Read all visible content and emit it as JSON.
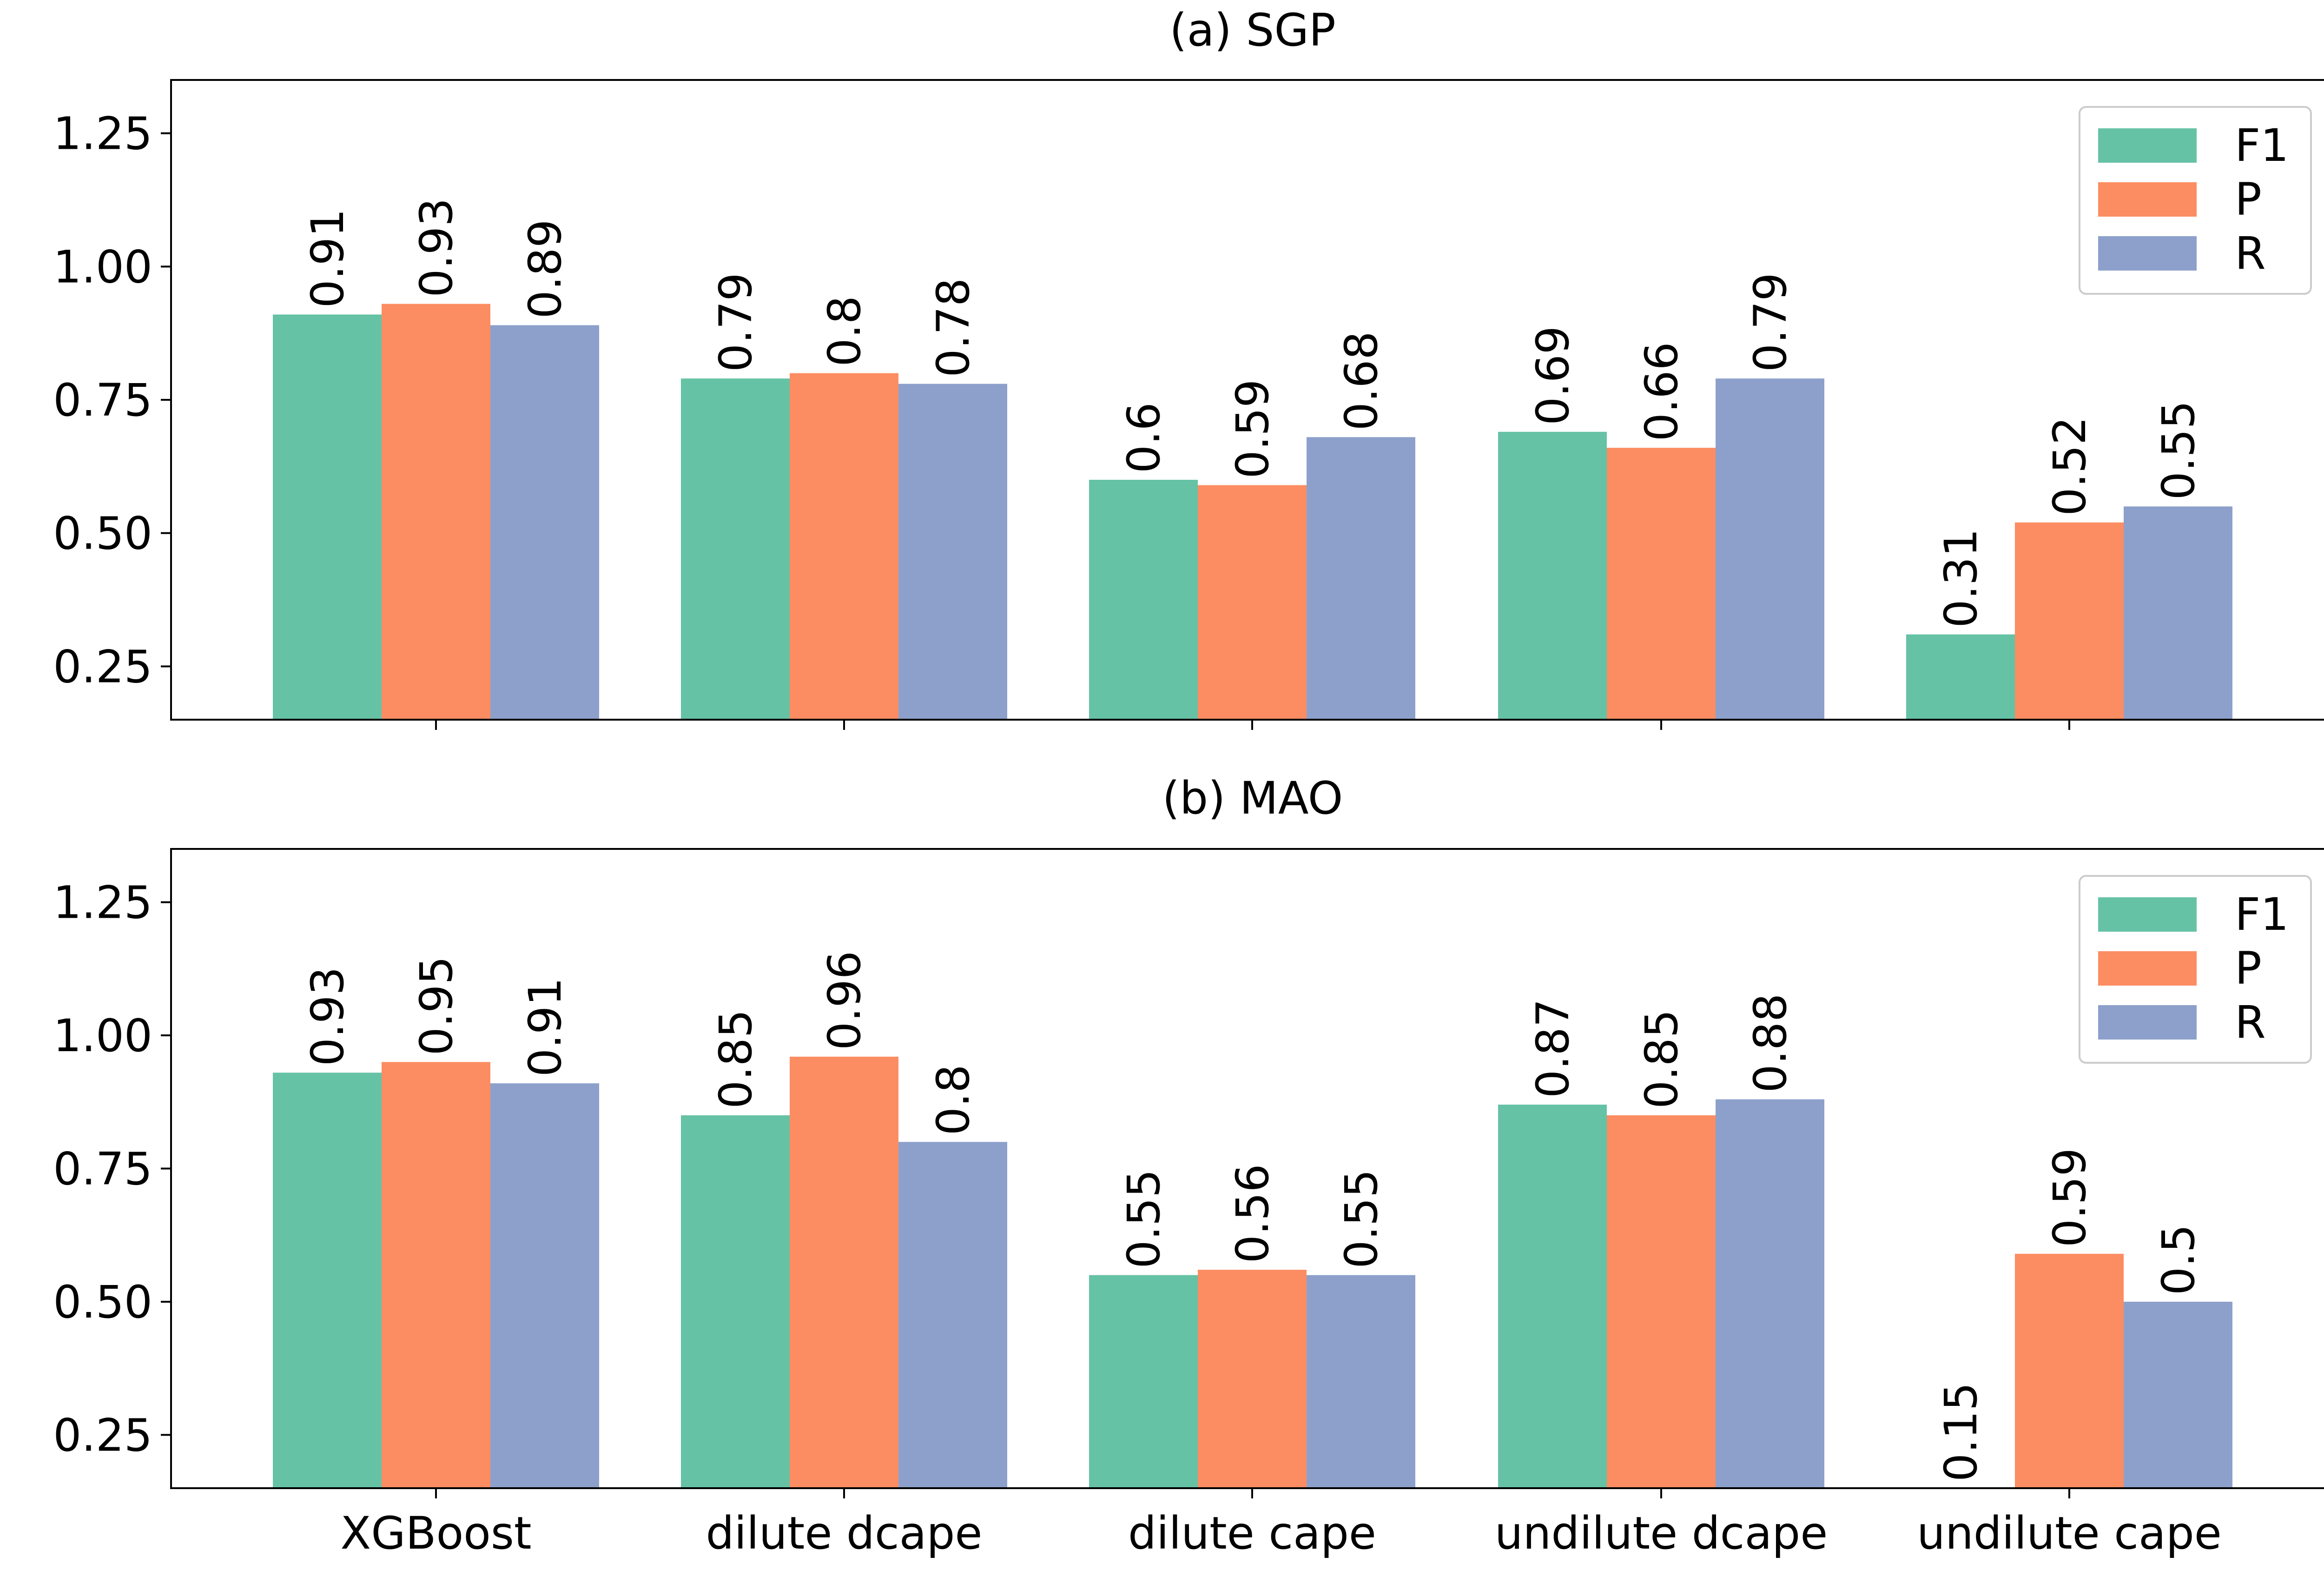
{
  "chart_data": [
    {
      "type": "bar",
      "title": "(a) SGP",
      "xlabel": "",
      "ylabel": "",
      "categories": [
        "XGBoost",
        "dilute dcape",
        "dilute cape",
        "undilute dcape",
        "undilute cape"
      ],
      "show_category_labels": false,
      "ylim": [
        0.15,
        1.35
      ],
      "yticks": [
        0.25,
        0.5,
        0.75,
        1.0,
        1.25
      ],
      "ytick_labels": [
        "0.25",
        "0.50",
        "0.75",
        "1.00",
        "1.25"
      ],
      "legend_position": "top-right",
      "grid": false,
      "series": [
        {
          "name": "F1",
          "color": "#66c2a5",
          "values": [
            0.91,
            0.79,
            0.6,
            0.69,
            0.31
          ],
          "labels": [
            "0.91",
            "0.79",
            "0.6",
            "0.69",
            "0.31"
          ]
        },
        {
          "name": "P",
          "color": "#fc8d62",
          "values": [
            0.93,
            0.8,
            0.59,
            0.66,
            0.52
          ],
          "labels": [
            "0.93",
            "0.8",
            "0.59",
            "0.66",
            "0.52"
          ]
        },
        {
          "name": "R",
          "color": "#8da0cb",
          "values": [
            0.89,
            0.78,
            0.68,
            0.79,
            0.55
          ],
          "labels": [
            "0.89",
            "0.78",
            "0.68",
            "0.79",
            "0.55"
          ]
        }
      ]
    },
    {
      "type": "bar",
      "title": "(b) MAO",
      "xlabel": "",
      "ylabel": "",
      "categories": [
        "XGBoost",
        "dilute dcape",
        "dilute cape",
        "undilute dcape",
        "undilute cape"
      ],
      "show_category_labels": true,
      "ylim": [
        0.15,
        1.35
      ],
      "yticks": [
        0.25,
        0.5,
        0.75,
        1.0,
        1.25
      ],
      "ytick_labels": [
        "0.25",
        "0.50",
        "0.75",
        "1.00",
        "1.25"
      ],
      "legend_position": "top-right",
      "grid": false,
      "series": [
        {
          "name": "F1",
          "color": "#66c2a5",
          "values": [
            0.93,
            0.85,
            0.55,
            0.87,
            0.15
          ],
          "labels": [
            "0.93",
            "0.85",
            "0.55",
            "0.87",
            "0.15"
          ]
        },
        {
          "name": "P",
          "color": "#fc8d62",
          "values": [
            0.95,
            0.96,
            0.56,
            0.85,
            0.59
          ],
          "labels": [
            "0.95",
            "0.96",
            "0.56",
            "0.85",
            "0.59"
          ]
        },
        {
          "name": "R",
          "color": "#8da0cb",
          "values": [
            0.91,
            0.8,
            0.55,
            0.88,
            0.5
          ],
          "labels": [
            "0.91",
            "0.8",
            "0.55",
            "0.88",
            "0.5"
          ]
        }
      ]
    }
  ]
}
